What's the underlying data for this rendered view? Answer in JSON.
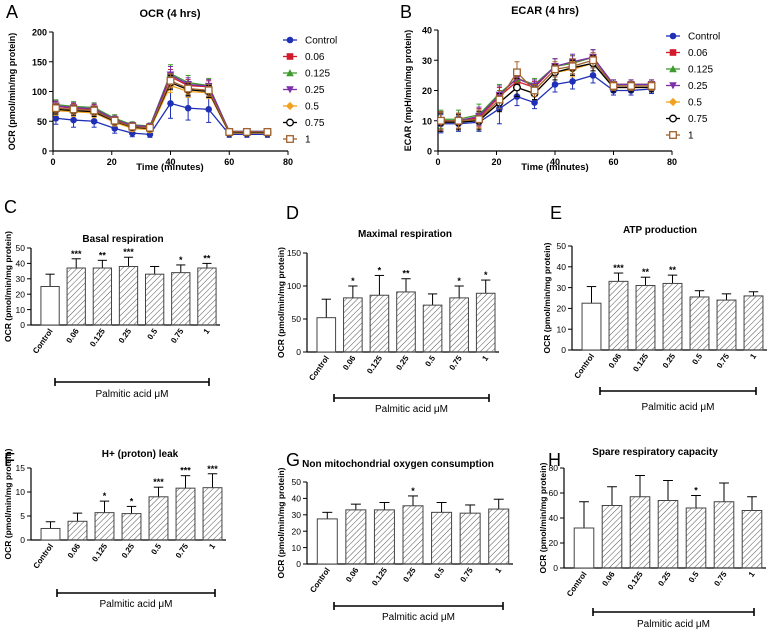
{
  "figure": {
    "bar_x_group_label": "Palmitic acid μM",
    "colors": {
      "Control": "#1f2fb6",
      "0.06": "#d11a2a",
      "0.125": "#3f9b2f",
      "0.25": "#7b2fa8",
      "0.5": "#f0a21e",
      "0.75": "#000000",
      "1": "#a0622d"
    }
  },
  "chart_data": [
    {
      "panel": "A",
      "type": "line",
      "title": "OCR (4 hrs)",
      "xlabel": "Time (minutes)",
      "ylabel": "OCR (pmol/min/mg protein)",
      "xlim": [
        0,
        80
      ],
      "ylim": [
        0,
        200
      ],
      "xticks": [
        0,
        20,
        40,
        60,
        80
      ],
      "yticks": [
        0,
        50,
        100,
        150,
        200
      ],
      "x": [
        1,
        7,
        14,
        21,
        27,
        33,
        40,
        46,
        53,
        60,
        66,
        73
      ],
      "series": [
        {
          "name": "Control",
          "marker": "circle",
          "values": [
            55,
            52,
            50,
            38,
            30,
            28,
            80,
            72,
            70,
            28,
            28,
            28
          ],
          "err": [
            10,
            12,
            10,
            8,
            6,
            5,
            25,
            20,
            22,
            5,
            5,
            5
          ]
        },
        {
          "name": "0.06",
          "marker": "square",
          "values": [
            75,
            72,
            70,
            52,
            42,
            40,
            125,
            110,
            108,
            32,
            32,
            32
          ],
          "err": [
            8,
            8,
            8,
            6,
            5,
            5,
            12,
            10,
            10,
            4,
            4,
            4
          ]
        },
        {
          "name": "0.125",
          "marker": "triangle",
          "values": [
            78,
            75,
            73,
            55,
            44,
            42,
            130,
            115,
            110,
            33,
            33,
            33
          ],
          "err": [
            8,
            8,
            8,
            6,
            5,
            5,
            15,
            12,
            12,
            4,
            4,
            4
          ]
        },
        {
          "name": "0.25",
          "marker": "triangle-down",
          "values": [
            76,
            73,
            71,
            53,
            43,
            41,
            128,
            112,
            109,
            33,
            33,
            33
          ],
          "err": [
            8,
            8,
            8,
            6,
            5,
            5,
            14,
            11,
            11,
            4,
            4,
            4
          ]
        },
        {
          "name": "0.5",
          "marker": "diamond",
          "values": [
            68,
            66,
            64,
            48,
            38,
            36,
            110,
            100,
            98,
            30,
            30,
            30
          ],
          "err": [
            8,
            8,
            8,
            6,
            5,
            5,
            12,
            10,
            10,
            4,
            4,
            4
          ]
        },
        {
          "name": "0.75",
          "marker": "circle-open",
          "values": [
            70,
            68,
            66,
            50,
            40,
            38,
            115,
            103,
            100,
            31,
            31,
            31
          ],
          "err": [
            8,
            8,
            8,
            6,
            5,
            5,
            12,
            10,
            10,
            4,
            4,
            4
          ]
        },
        {
          "name": "1",
          "marker": "square-open",
          "values": [
            72,
            70,
            68,
            51,
            41,
            39,
            118,
            105,
            102,
            32,
            32,
            32
          ],
          "err": [
            8,
            8,
            8,
            6,
            5,
            5,
            12,
            10,
            10,
            4,
            4,
            4
          ]
        }
      ]
    },
    {
      "panel": "B",
      "type": "line",
      "title": "ECAR (4 hrs)",
      "xlabel": "Time (minutes)",
      "ylabel": "ECAR (mpH/min/mg protein)",
      "xlim": [
        0,
        80
      ],
      "ylim": [
        0,
        40
      ],
      "xticks": [
        0,
        20,
        40,
        60,
        80
      ],
      "yticks": [
        0,
        10,
        20,
        30,
        40
      ],
      "x": [
        1,
        7,
        14,
        21,
        27,
        33,
        40,
        46,
        53,
        60,
        66,
        73
      ],
      "series": [
        {
          "name": "Control",
          "marker": "circle",
          "values": [
            9,
            9,
            9.5,
            14,
            18,
            16,
            22,
            23,
            25,
            20,
            20,
            20.5
          ],
          "err": [
            3,
            2.5,
            3,
            5,
            3,
            2,
            2.5,
            2.5,
            2.5,
            1.5,
            1.5,
            1.5
          ]
        },
        {
          "name": "0.06",
          "marker": "square",
          "values": [
            10,
            10,
            11,
            18,
            23,
            21,
            28,
            29,
            31,
            22,
            22,
            22
          ],
          "err": [
            3,
            2.5,
            3,
            3,
            3,
            2,
            2.5,
            2.5,
            2.5,
            1.5,
            1.5,
            1.5
          ]
        },
        {
          "name": "0.125",
          "marker": "triangle",
          "values": [
            10.5,
            10.5,
            12,
            19,
            24,
            22,
            28,
            29,
            31,
            22,
            22,
            22
          ],
          "err": [
            3,
            3,
            3.5,
            3,
            3,
            2,
            2.5,
            2.5,
            2.5,
            1.5,
            1.5,
            1.5
          ]
        },
        {
          "name": "0.25",
          "marker": "triangle-down",
          "values": [
            10,
            10,
            11.5,
            18.5,
            24,
            21.5,
            28,
            29.5,
            31,
            22,
            22,
            22
          ],
          "err": [
            3,
            2.5,
            3,
            3,
            3,
            2,
            2.5,
            2.5,
            2.5,
            1.5,
            1.5,
            1.5
          ]
        },
        {
          "name": "0.5",
          "marker": "diamond",
          "values": [
            9.5,
            9.5,
            10.5,
            16,
            21,
            19,
            26,
            27,
            29,
            21,
            21,
            21
          ],
          "err": [
            3,
            2.5,
            3,
            3,
            3,
            2,
            2.5,
            2.5,
            2.5,
            1.5,
            1.5,
            1.5
          ]
        },
        {
          "name": "0.75",
          "marker": "circle-open",
          "values": [
            9.5,
            9.5,
            10,
            16,
            21,
            19,
            26,
            27.5,
            29,
            21,
            21,
            21
          ],
          "err": [
            3,
            2.5,
            3,
            3,
            3,
            2,
            2.5,
            2.5,
            2.5,
            1.5,
            1.5,
            1.5
          ]
        },
        {
          "name": "1",
          "marker": "square-open",
          "values": [
            10,
            10,
            10.5,
            17,
            26,
            20,
            27,
            28,
            30,
            21.5,
            21.5,
            21.5
          ],
          "err": [
            3,
            2.5,
            3,
            3,
            3.5,
            2,
            2.5,
            2.5,
            2.5,
            1.5,
            1.5,
            1.5
          ]
        }
      ]
    },
    {
      "panel": "C",
      "type": "bar",
      "title": "Basal respiration",
      "ylabel": "OCR (pmol/min/mg protein)",
      "xlabel": "Palmitic acid μM",
      "ylim": [
        0,
        50
      ],
      "yticks": [
        0,
        10,
        20,
        30,
        40,
        50
      ],
      "categories": [
        "Control",
        "0.06",
        "0.125",
        "0.25",
        "0.5",
        "0.75",
        "1"
      ],
      "values": [
        25,
        37,
        37,
        38,
        33,
        34,
        37
      ],
      "err": [
        8,
        6,
        5,
        6,
        5,
        5,
        3
      ],
      "significance": [
        "",
        "***",
        "**",
        "***",
        "",
        "*",
        "**"
      ]
    },
    {
      "panel": "D",
      "type": "bar",
      "title": "Maximal respiration",
      "ylabel": "OCR (pmol/min/mg protein)",
      "xlabel": "Palmitic acid μM",
      "ylim": [
        0,
        150
      ],
      "yticks": [
        0,
        50,
        100,
        150
      ],
      "categories": [
        "Control",
        "0.06",
        "0.125",
        "0.25",
        "0.5",
        "0.75",
        "1"
      ],
      "values": [
        52,
        82,
        86,
        91,
        71,
        82,
        89
      ],
      "err": [
        28,
        18,
        30,
        20,
        17,
        18,
        20
      ],
      "significance": [
        "",
        "*",
        "*",
        "**",
        "",
        "*",
        "*"
      ]
    },
    {
      "panel": "E",
      "type": "bar",
      "title": "ATP production",
      "ylabel": "OCR (pmol/min/mg protein)",
      "xlabel": "Palmitic acid μM",
      "ylim": [
        0,
        50
      ],
      "yticks": [
        0,
        10,
        20,
        30,
        40,
        50
      ],
      "categories": [
        "Control",
        "0.06",
        "0.125",
        "0.25",
        "0.5",
        "0.75",
        "1"
      ],
      "values": [
        22.5,
        33,
        31,
        32,
        25.5,
        24,
        26
      ],
      "err": [
        8,
        4,
        4,
        4,
        3,
        3,
        2
      ],
      "significance": [
        "",
        "***",
        "**",
        "**",
        "",
        "",
        ""
      ]
    },
    {
      "panel": "F",
      "type": "bar",
      "title": "H+ (proton) leak",
      "ylabel": "OCR (pmol/min/mg protein)",
      "xlabel": "Palmitic acid μM",
      "ylim": [
        0,
        15
      ],
      "yticks": [
        0,
        5,
        10,
        15
      ],
      "categories": [
        "Control",
        "0.06",
        "0.125",
        "0.25",
        "0.5",
        "0.75",
        "1"
      ],
      "values": [
        2.4,
        3.9,
        5.7,
        5.5,
        9.0,
        10.8,
        10.9
      ],
      "err": [
        1.4,
        1.7,
        2.4,
        1.5,
        2.0,
        2.6,
        2.9
      ],
      "significance": [
        "",
        "",
        "*",
        "*",
        "***",
        "***",
        "***"
      ]
    },
    {
      "panel": "G",
      "type": "bar",
      "title": "Non mitochondrial oxygen consumption",
      "ylabel": "OCR (pmol/min/mg protein)",
      "xlabel": "Palmitic acid μM",
      "ylim": [
        0,
        50
      ],
      "yticks": [
        0,
        10,
        20,
        30,
        40,
        50
      ],
      "categories": [
        "Control",
        "0.06",
        "0.125",
        "0.25",
        "0.5",
        "0.75",
        "1"
      ],
      "values": [
        27.5,
        33,
        33,
        35.5,
        31.5,
        31,
        33.5
      ],
      "err": [
        4,
        3.5,
        4.5,
        6,
        6,
        5,
        6
      ],
      "significance": [
        "",
        "",
        "",
        "*",
        "",
        "",
        ""
      ]
    },
    {
      "panel": "H",
      "type": "bar",
      "title": "Spare respiratory capacity",
      "ylabel": "OCR (pmol/min/mg protein)",
      "xlabel": "Palmitic acid μM",
      "ylim": [
        0,
        80
      ],
      "yticks": [
        0,
        20,
        40,
        60,
        80
      ],
      "categories": [
        "Control",
        "0.06",
        "0.125",
        "0.25",
        "0.5",
        "0.75",
        "1"
      ],
      "values": [
        32,
        50,
        57,
        54,
        48,
        53,
        46
      ],
      "err": [
        21,
        15,
        17,
        16,
        10,
        15,
        11
      ],
      "significance": [
        "",
        "",
        "",
        "",
        "*",
        "",
        ""
      ]
    }
  ]
}
